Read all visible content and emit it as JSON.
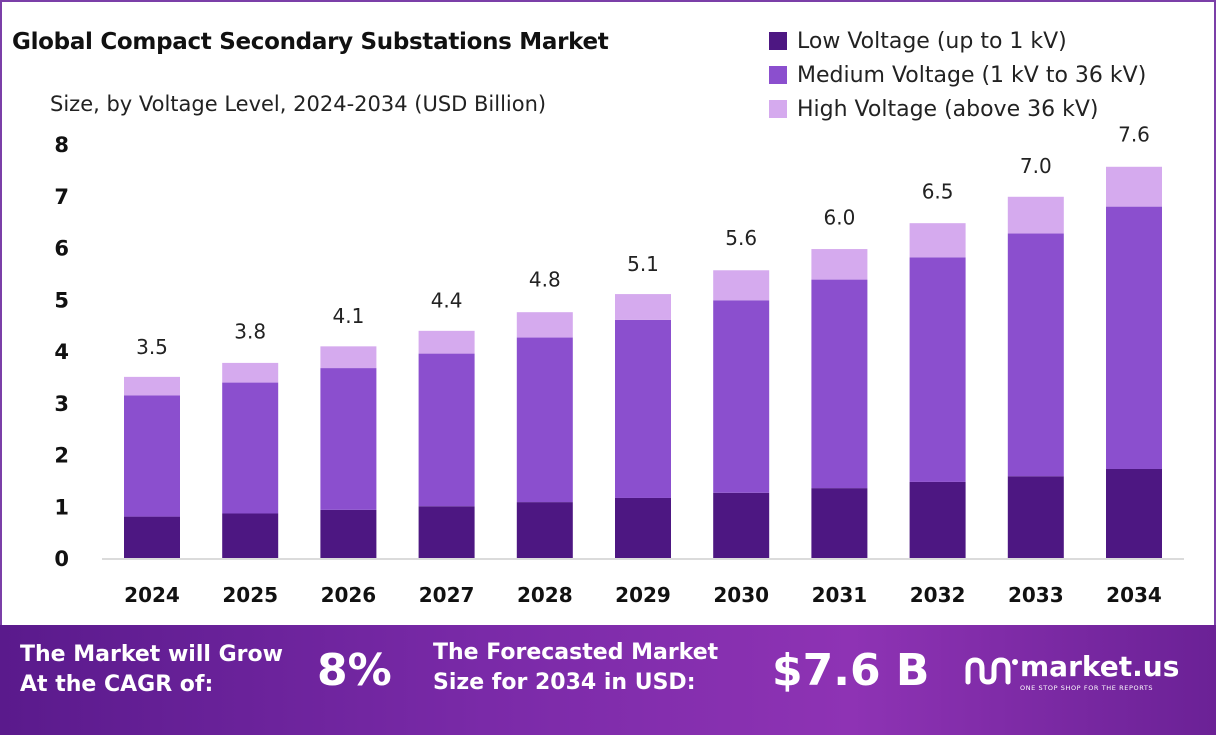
{
  "chart_data": {
    "type": "bar",
    "stacked": true,
    "title": "Global Compact Secondary Substations Market",
    "subtitle": "Size, by Voltage Level, 2024-2034 (USD Billion)",
    "categories": [
      "2024",
      "2025",
      "2026",
      "2027",
      "2028",
      "2029",
      "2030",
      "2031",
      "2032",
      "2033",
      "2034"
    ],
    "series": [
      {
        "name": "Low Voltage (up to 1 kV)",
        "color": "#4d1782",
        "values": [
          0.8,
          0.86,
          0.93,
          1.0,
          1.08,
          1.16,
          1.26,
          1.35,
          1.47,
          1.58,
          1.72
        ]
      },
      {
        "name": "Medium Voltage (1 kV to 36 kV)",
        "color": "#8b4fce",
        "values": [
          2.34,
          2.53,
          2.74,
          2.95,
          3.18,
          3.44,
          3.72,
          4.03,
          4.34,
          4.69,
          5.07
        ]
      },
      {
        "name": "High Voltage (above 36 kV)",
        "color": "#d5aaee",
        "values": [
          0.36,
          0.38,
          0.42,
          0.44,
          0.49,
          0.5,
          0.58,
          0.59,
          0.66,
          0.71,
          0.77
        ]
      }
    ],
    "totals": [
      3.5,
      3.8,
      4.1,
      4.4,
      4.8,
      5.1,
      5.6,
      6.0,
      6.5,
      7.0,
      7.6
    ],
    "total_labels": [
      "3.5",
      "3.8",
      "4.1",
      "4.4",
      "4.8",
      "5.1",
      "5.6",
      "6.0",
      "6.5",
      "7.0",
      "7.6"
    ],
    "yticks": [
      "0",
      "1",
      "2",
      "3",
      "4",
      "5",
      "6",
      "7",
      "8"
    ],
    "ylim": [
      0,
      8
    ],
    "grid": false,
    "legend_position": "top-right"
  },
  "footer": {
    "cagr_line1": "The Market will Grow",
    "cagr_line2": "At the CAGR of:",
    "cagr_value": "8%",
    "forecast_line1": "The Forecasted Market",
    "forecast_line2": "Size for 2034 in USD:",
    "forecast_value": "$7.6 B",
    "brand_name": "market.us",
    "brand_tagline": "ONE STOP SHOP FOR THE REPORTS"
  }
}
